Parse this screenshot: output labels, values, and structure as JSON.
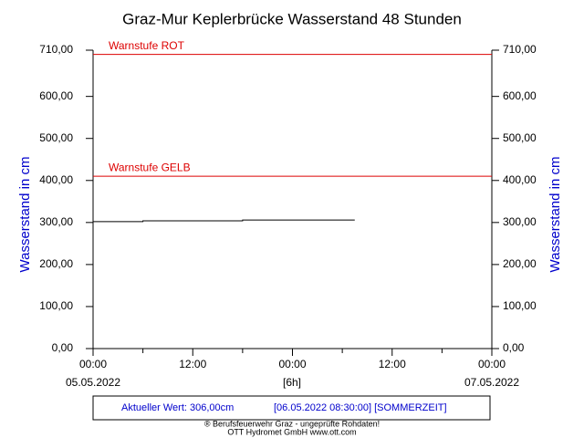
{
  "chart_data": {
    "type": "line",
    "title": "Graz-Mur Keplerbrücke Wasserstand 48 Stunden",
    "ylabel": "Wasserstand in cm",
    "ylim": [
      0,
      710
    ],
    "yticks": [
      {
        "value": 0,
        "label": "0,00"
      },
      {
        "value": 100,
        "label": "100,00"
      },
      {
        "value": 200,
        "label": "200,00"
      },
      {
        "value": 300,
        "label": "300,00"
      },
      {
        "value": 400,
        "label": "400,00"
      },
      {
        "value": 500,
        "label": "500,00"
      },
      {
        "value": 600,
        "label": "600,00"
      },
      {
        "value": 710,
        "label": "710,00"
      }
    ],
    "xlim": [
      0,
      48
    ],
    "xticks": [
      {
        "value": 0,
        "label": "00:00"
      },
      {
        "value": 12,
        "label": "12:00"
      },
      {
        "value": 24,
        "label": "00:00"
      },
      {
        "value": 36,
        "label": "12:00"
      },
      {
        "value": 48,
        "label": "00:00"
      }
    ],
    "xminorticks": [
      6,
      18,
      30,
      42
    ],
    "date_start": "05.05.2022",
    "interval": "[6h]",
    "date_end": "07.05.2022",
    "thresholds": [
      {
        "label": "Warnstufe ROT",
        "value": 700,
        "color": "#dd0000"
      },
      {
        "label": "Warnstufe GELB",
        "value": 410,
        "color": "#dd0000"
      }
    ],
    "series": [
      {
        "color": "#000000",
        "x": [
          0,
          6,
          6,
          18,
          18,
          31.5
        ],
        "values": [
          302,
          302,
          304,
          304,
          306,
          306
        ]
      }
    ],
    "current_value": "Aktueller Wert: 306,00cm",
    "timestamp": "[06.05.2022 08:30:00] [SOMMERZEIT]",
    "credits": [
      "® Berufsfeuerwehr Graz - ungeprüfte Rohdaten!",
      "OTT Hydromet GmbH    www.ott.com"
    ]
  }
}
